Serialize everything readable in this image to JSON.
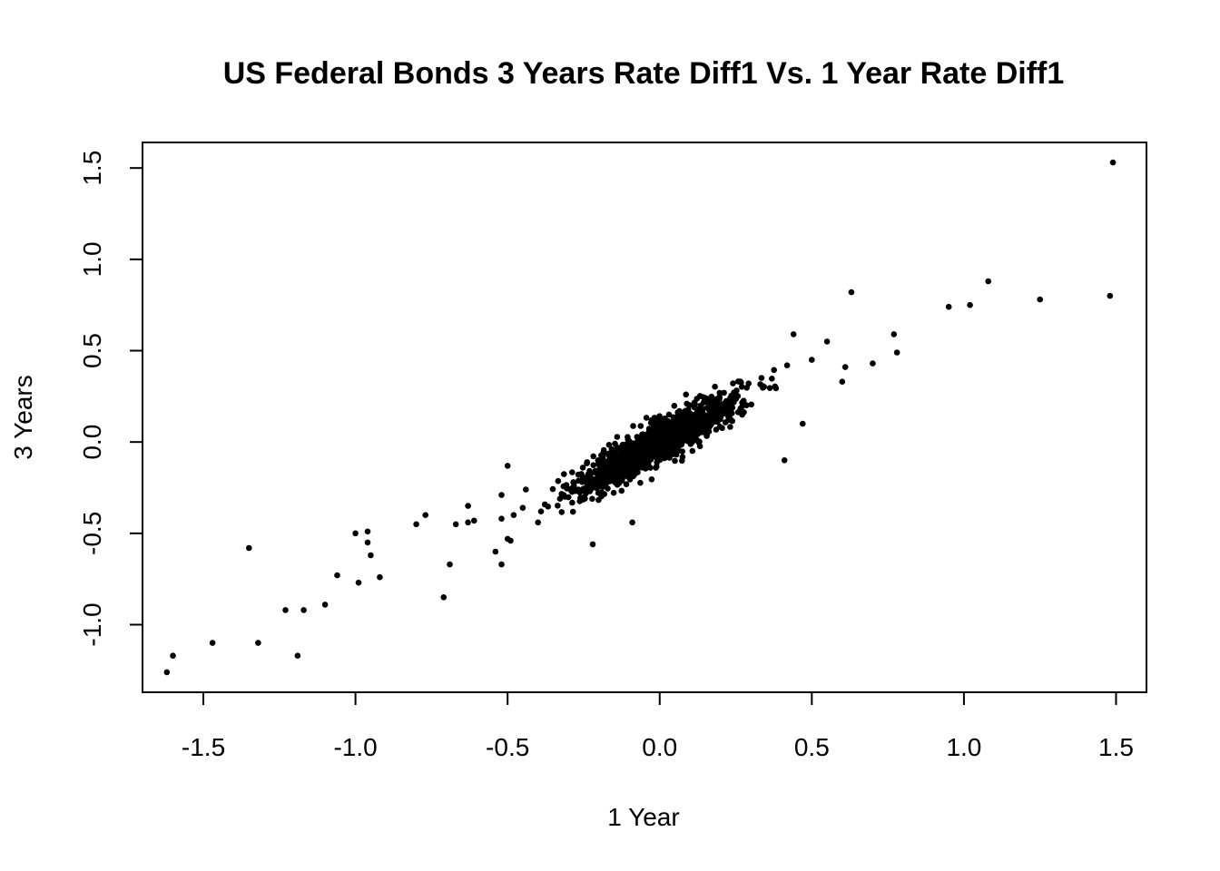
{
  "chart_data": {
    "type": "scatter",
    "title": "US Federal Bonds 3 Years Rate Diff1 Vs. 1 Year Rate Diff1",
    "xlabel": "1 Year",
    "ylabel": "3 Years",
    "xlim": [
      -1.7,
      1.6
    ],
    "ylim": [
      -1.37,
      1.64
    ],
    "xticks": [
      -1.5,
      -1.0,
      -0.5,
      0.0,
      0.5,
      1.0,
      1.5
    ],
    "xtick_labels": [
      "-1.5",
      "-1.0",
      "-0.5",
      "0.0",
      "0.5",
      "1.0",
      "1.5"
    ],
    "yticks": [
      -1.0,
      -0.5,
      0.0,
      0.5,
      1.0,
      1.5
    ],
    "ytick_labels": [
      "-1.0",
      "-0.5",
      "0.0",
      "0.5",
      "1.0",
      "1.5"
    ],
    "grid": false,
    "point_color": "#000000",
    "outliers": [
      [
        1.49,
        1.53
      ],
      [
        1.48,
        0.8
      ],
      [
        1.25,
        0.78
      ],
      [
        1.08,
        0.88
      ],
      [
        1.02,
        0.75
      ],
      [
        0.95,
        0.74
      ],
      [
        0.63,
        0.82
      ],
      [
        0.78,
        0.49
      ],
      [
        0.77,
        0.59
      ],
      [
        0.7,
        0.43
      ],
      [
        0.61,
        0.41
      ],
      [
        0.6,
        0.33
      ],
      [
        0.55,
        0.55
      ],
      [
        0.44,
        0.59
      ],
      [
        0.5,
        0.45
      ],
      [
        0.41,
        -0.1
      ],
      [
        0.47,
        0.1
      ],
      [
        -0.22,
        -0.56
      ],
      [
        -0.09,
        -0.44
      ],
      [
        -1.62,
        -1.26
      ],
      [
        -1.6,
        -1.17
      ],
      [
        -1.47,
        -1.1
      ],
      [
        -1.35,
        -0.58
      ],
      [
        -1.32,
        -1.1
      ],
      [
        -1.23,
        -0.92
      ],
      [
        -1.19,
        -1.17
      ],
      [
        -1.17,
        -0.92
      ],
      [
        -1.1,
        -0.89
      ],
      [
        -1.06,
        -0.73
      ],
      [
        -1.0,
        -0.5
      ],
      [
        -0.99,
        -0.77
      ],
      [
        -0.96,
        -0.49
      ],
      [
        -0.96,
        -0.55
      ],
      [
        -0.95,
        -0.62
      ],
      [
        -0.92,
        -0.74
      ],
      [
        -0.8,
        -0.45
      ],
      [
        -0.77,
        -0.4
      ],
      [
        -0.71,
        -0.85
      ],
      [
        -0.69,
        -0.67
      ],
      [
        -0.67,
        -0.45
      ],
      [
        -0.63,
        -0.44
      ],
      [
        -0.63,
        -0.35
      ],
      [
        -0.61,
        -0.43
      ],
      [
        -0.54,
        -0.6
      ],
      [
        -0.52,
        -0.67
      ],
      [
        -0.52,
        -0.42
      ],
      [
        -0.5,
        -0.53
      ],
      [
        -0.49,
        -0.54
      ],
      [
        -0.5,
        -0.13
      ],
      [
        -0.52,
        -0.29
      ],
      [
        -0.48,
        -0.4
      ],
      [
        -0.45,
        -0.36
      ],
      [
        -0.44,
        -0.26
      ],
      [
        -0.4,
        -0.44
      ],
      [
        -0.39,
        -0.38
      ]
    ],
    "main_cloud": {
      "n": 1400,
      "x_mean": 0.0,
      "x_sd": 0.13,
      "slope": 0.9,
      "residual_sd": 0.055
    }
  }
}
